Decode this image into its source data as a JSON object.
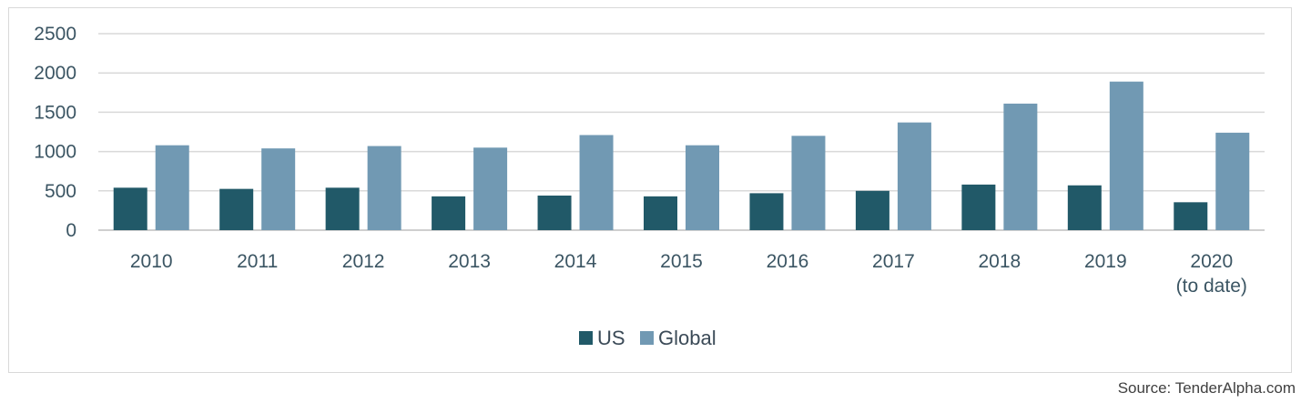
{
  "chart_data": {
    "type": "bar",
    "categories": [
      "2010",
      "2011",
      "2012",
      "2013",
      "2014",
      "2015",
      "2016",
      "2017",
      "2018",
      "2019",
      "2020\n(to date)"
    ],
    "series": [
      {
        "name": "US",
        "color": "#215968",
        "values": [
          540,
          525,
          540,
          430,
          440,
          430,
          470,
          500,
          580,
          570,
          355
        ]
      },
      {
        "name": "Global",
        "color": "#7199b3",
        "values": [
          1080,
          1040,
          1070,
          1050,
          1210,
          1080,
          1200,
          1370,
          1610,
          1890,
          1240
        ]
      }
    ],
    "yticks": [
      0,
      500,
      1000,
      1500,
      2000,
      2500
    ],
    "ylim": [
      0,
      2500
    ],
    "grid": true,
    "legend_position": "bottom"
  },
  "source": "Source: TenderAlpha.com"
}
